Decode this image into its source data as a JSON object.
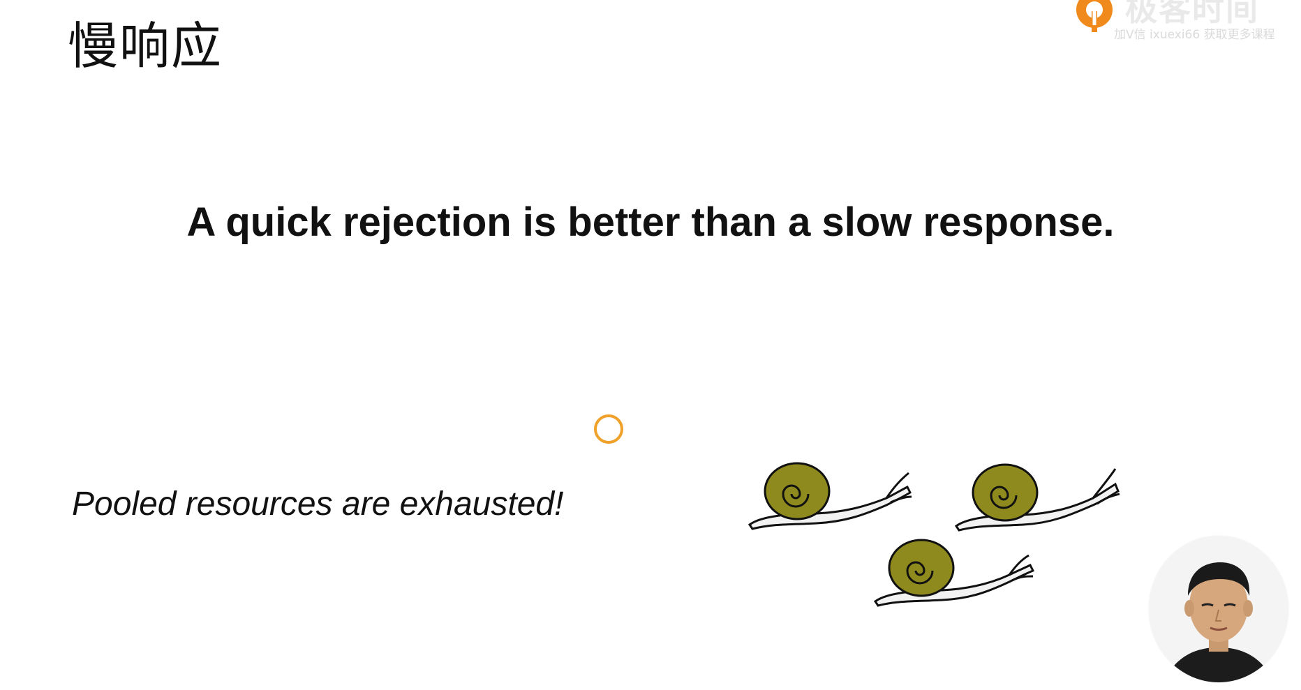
{
  "slide": {
    "title": "慢响应",
    "headline": "A quick rejection is better than a slow response.",
    "caption": "Pooled resources are exhausted!"
  },
  "watermark": {
    "brand_name": "极客时间",
    "brand_subtitle": "加V信 ixuexi66 获取更多课程",
    "logo_icon": "geektime-logo-icon",
    "brand_color": "#f08a1c"
  },
  "illustration": {
    "icon": "snails-illustration",
    "shell_color": "#8e8a1e",
    "cursor_color": "#f0a12a"
  },
  "presenter": {
    "icon": "presenter-avatar"
  }
}
